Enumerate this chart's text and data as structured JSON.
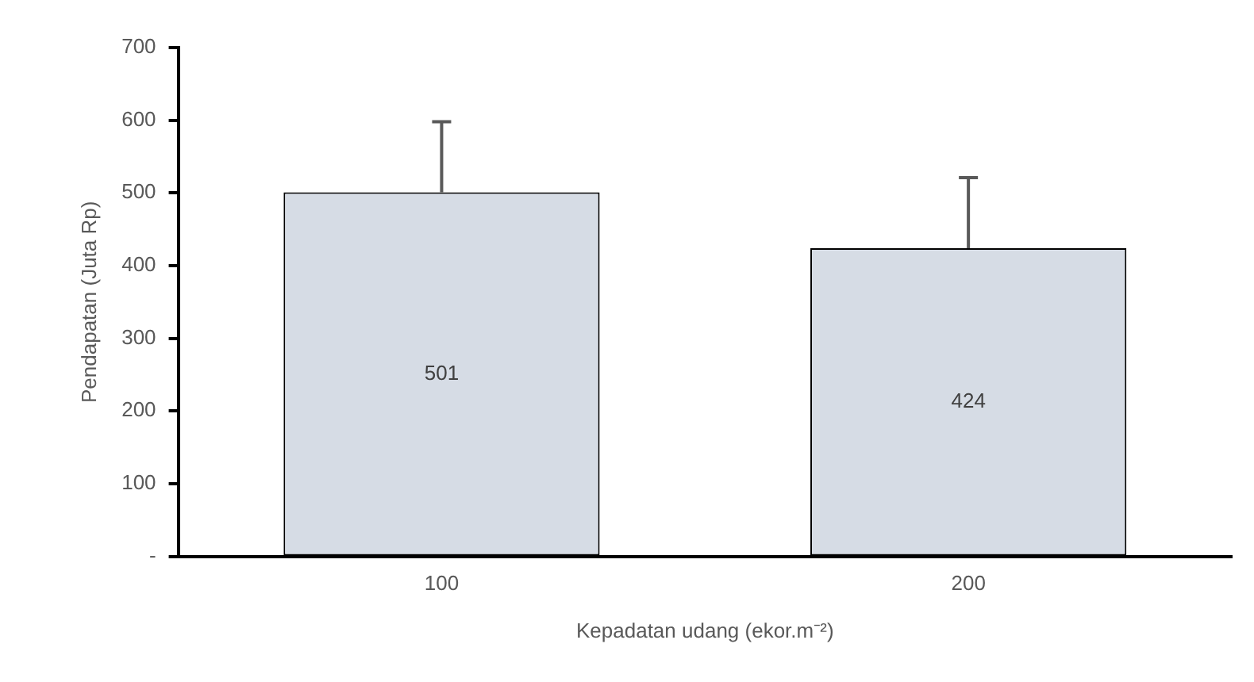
{
  "chart_data": {
    "type": "bar",
    "xlabel": "Kepadatan udang (ekor.m⁻²)",
    "ylabel": "Pendapatan (Juta Rp)",
    "categories": [
      "100",
      "200"
    ],
    "values": [
      501,
      424
    ],
    "color": "#d6dce5",
    "errors": [
      97,
      97
    ],
    "ylim": [
      0,
      700
    ],
    "yticks": [
      {
        "value": 0,
        "label": "-"
      },
      100,
      200,
      300,
      400,
      500,
      600,
      700
    ],
    "data_labels": true,
    "grid": false,
    "legend": false
  }
}
